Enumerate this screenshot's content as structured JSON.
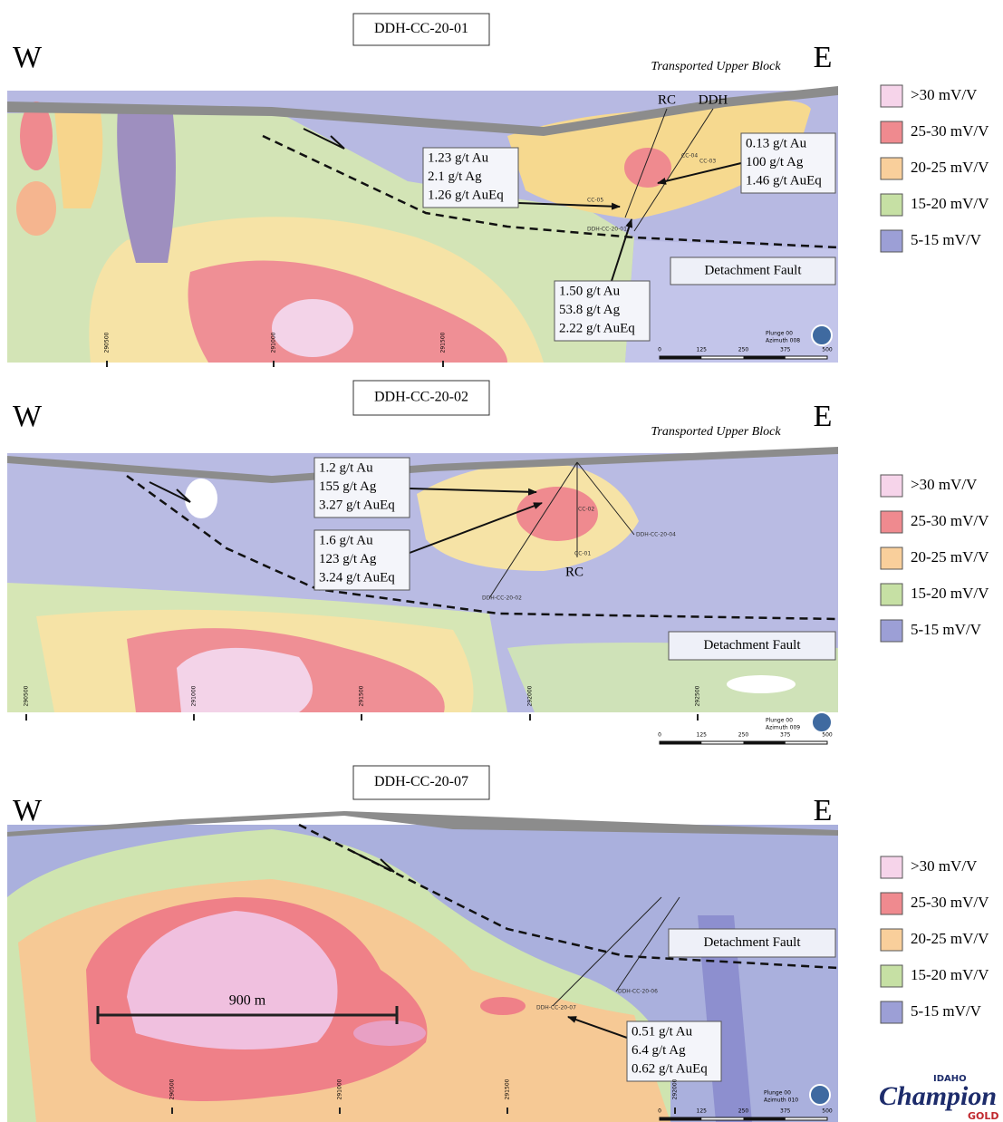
{
  "panels": [
    {
      "title": "DDH-CC-20-01",
      "west": "W",
      "east": "E",
      "block_label": "Transported Upper Block",
      "fault_label": "Detachment Fault",
      "hole_labels": [
        "RC",
        "DDH"
      ],
      "callouts": [
        [
          "1.23 g/t Au",
          "2.1 g/t Ag",
          "1.26 g/t AuEq"
        ],
        [
          "0.13 g/t Au",
          "100 g/t Ag",
          "1.46 g/t AuEq"
        ],
        [
          "1.50 g/t Au",
          "53.8 g/t Ag",
          "2.22 g/t AuEq"
        ]
      ],
      "drill_labels": [
        "CC-04",
        "CC-03",
        "CC-05",
        "DDH-CC-20-01"
      ],
      "eastings": [
        "290500",
        "291000",
        "291500"
      ],
      "orientation": [
        "Plunge 00",
        "Azimuth 008"
      ],
      "scale": [
        "0",
        "125",
        "250",
        "375",
        "500"
      ],
      "legend": [
        {
          "label": ">30 mV/V",
          "color": "#f6d4ea"
        },
        {
          "label": "25-30 mV/V",
          "color": "#ef8a8f"
        },
        {
          "label": "20-25 mV/V",
          "color": "#f9cf9b"
        },
        {
          "label": "15-20 mV/V",
          "color": "#c6e0a4"
        },
        {
          "label": "5-15 mV/V",
          "color": "#9c9fd6"
        }
      ]
    },
    {
      "title": "DDH-CC-20-02",
      "west": "W",
      "east": "E",
      "block_label": "Transported Upper Block",
      "fault_label": "Detachment Fault",
      "hole_labels": [
        "RC"
      ],
      "callouts": [
        [
          "1.2 g/t Au",
          "155 g/t Ag",
          "3.27 g/t AuEq"
        ],
        [
          "1.6 g/t Au",
          "123 g/t Ag",
          "3.24 g/t AuEq"
        ]
      ],
      "drill_labels": [
        "CC-02",
        "CC-01",
        "DDH-CC-20-04",
        "DDH-CC-20-02"
      ],
      "eastings": [
        "290500",
        "291000",
        "291500",
        "292000",
        "292500"
      ],
      "orientation": [
        "Plunge 00",
        "Azimuth 009"
      ],
      "scale": [
        "0",
        "125",
        "250",
        "375",
        "500"
      ],
      "legend": [
        {
          "label": ">30 mV/V",
          "color": "#f6d4ea"
        },
        {
          "label": "25-30 mV/V",
          "color": "#ef8a8f"
        },
        {
          "label": "20-25 mV/V",
          "color": "#f9cf9b"
        },
        {
          "label": "15-20 mV/V",
          "color": "#c6e0a4"
        },
        {
          "label": "5-15 mV/V",
          "color": "#9c9fd6"
        }
      ]
    },
    {
      "title": "DDH-CC-20-07",
      "west": "W",
      "east": "E",
      "fault_label": "Detachment Fault",
      "hole_labels": [],
      "callouts": [
        [
          "0.51 g/t Au",
          "6.4 g/t Ag",
          "0.62 g/t AuEq"
        ]
      ],
      "drill_labels": [
        "DDH-CC-20-06",
        "DDH-CC-20-07"
      ],
      "eastings": [
        "290500",
        "291000",
        "291500",
        "292000"
      ],
      "orientation": [
        "Plunge 00",
        "Azimuth 010"
      ],
      "scale": [
        "0",
        "125",
        "250",
        "375",
        "500"
      ],
      "dimension": "900 m",
      "legend": [
        {
          "label": ">30 mV/V",
          "color": "#f6d4ea"
        },
        {
          "label": "25-30 mV/V",
          "color": "#ef8a8f"
        },
        {
          "label": "20-25 mV/V",
          "color": "#f9cf9b"
        },
        {
          "label": "15-20 mV/V",
          "color": "#c6e0a4"
        },
        {
          "label": "5-15 mV/V",
          "color": "#9c9fd6"
        }
      ]
    }
  ],
  "logo": {
    "top": "IDAHO",
    "name": "Champion",
    "bottom": "GOLD"
  }
}
